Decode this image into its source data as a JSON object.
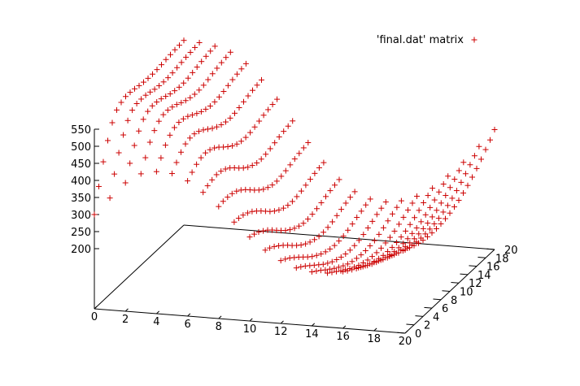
{
  "chart_data": {
    "type": "scatter",
    "title": "",
    "xlabel": "",
    "ylabel": "",
    "zlabel": "",
    "legend": {
      "entry": "'final.dat' matrix",
      "position": "top-right",
      "marker": "+",
      "color": "#cc0000"
    },
    "x_ticks": [
      0,
      2,
      4,
      6,
      8,
      10,
      12,
      14,
      16,
      18,
      20
    ],
    "y_ticks": [
      0,
      2,
      4,
      6,
      8,
      10,
      12,
      14,
      16,
      18,
      20
    ],
    "z_ticks": [
      200,
      250,
      300,
      350,
      400,
      450,
      500,
      550
    ],
    "xlim": [
      0,
      20
    ],
    "ylim": [
      0,
      20
    ],
    "zlim": [
      200,
      550
    ],
    "grid": false,
    "matrix": {
      "rows": 21,
      "cols": 21,
      "description_model": "z(x,y) surface: x index 0..20, y index 0..20",
      "z_values": [
        [
          300,
          370,
          430,
          480,
          520,
          545,
          555,
          560,
          560,
          558,
          555,
          553,
          552,
          552,
          553,
          555,
          558,
          560,
          562,
          563,
          565
        ],
        [
          352,
          410,
          460,
          500,
          530,
          548,
          555,
          556,
          555,
          552,
          548,
          546,
          545,
          545,
          547,
          550,
          553,
          556,
          558,
          560,
          562
        ],
        [
          400,
          445,
          485,
          515,
          537,
          548,
          552,
          551,
          548,
          543,
          538,
          535,
          533,
          533,
          535,
          539,
          543,
          547,
          550,
          553,
          555
        ],
        [
          430,
          465,
          498,
          520,
          535,
          542,
          543,
          540,
          535,
          528,
          522,
          518,
          516,
          516,
          518,
          522,
          527,
          531,
          535,
          538,
          541
        ],
        [
          440,
          468,
          493,
          510,
          520,
          523,
          521,
          516,
          508,
          500,
          493,
          488,
          485,
          485,
          487,
          491,
          496,
          501,
          505,
          508,
          511
        ],
        [
          438,
          458,
          476,
          488,
          493,
          493,
          488,
          480,
          470,
          460,
          452,
          446,
          442,
          441,
          443,
          447,
          452,
          457,
          461,
          464,
          467
        ],
        [
          420,
          433,
          444,
          451,
          453,
          450,
          443,
          433,
          421,
          410,
          400,
          393,
          389,
          388,
          390,
          394,
          399,
          404,
          408,
          411,
          414
        ],
        [
          390,
          397,
          402,
          405,
          403,
          397,
          388,
          376,
          363,
          351,
          341,
          334,
          329,
          328,
          330,
          334,
          339,
          344,
          348,
          351,
          354
        ],
        [
          352,
          355,
          355,
          353,
          348,
          339,
          328,
          315,
          302,
          290,
          280,
          273,
          268,
          267,
          269,
          273,
          278,
          283,
          287,
          291,
          294
        ],
        [
          310,
          309,
          306,
          300,
          292,
          281,
          269,
          256,
          243,
          232,
          223,
          216,
          212,
          211,
          213,
          217,
          222,
          227,
          232,
          236,
          239
        ],
        [
          270,
          266,
          260,
          251,
          241,
          229,
          216,
          203,
          191,
          181,
          173,
          167,
          163,
          163,
          165,
          169,
          174,
          180,
          185,
          189,
          193
        ],
        [
          235,
          229,
          221,
          211,
          200,
          188,
          175,
          163,
          152,
          143,
          136,
          131,
          128,
          128,
          130,
          134,
          140,
          146,
          152,
          157,
          161
        ],
        [
          208,
          200,
          191,
          180,
          169,
          157,
          145,
          134,
          125,
          117,
          111,
          107,
          105,
          106,
          108,
          113,
          119,
          126,
          132,
          138,
          143
        ],
        [
          190,
          181,
          171,
          160,
          149,
          138,
          127,
          118,
          110,
          104,
          99,
          96,
          95,
          96,
          99,
          104,
          111,
          118,
          126,
          132,
          138
        ],
        [
          182,
          172,
          162,
          151,
          141,
          131,
          122,
          114,
          107,
          102,
          99,
          97,
          97,
          99,
          102,
          108,
          115,
          123,
          131,
          138,
          145
        ],
        [
          182,
          172,
          162,
          152,
          143,
          134,
          126,
          119,
          114,
          110,
          108,
          107,
          108,
          111,
          115,
          121,
          129,
          137,
          146,
          154,
          162
        ],
        [
          190,
          180,
          171,
          162,
          154,
          146,
          139,
          134,
          130,
          127,
          126,
          126,
          128,
          132,
          137,
          144,
          152,
          161,
          171,
          180,
          189
        ],
        [
          205,
          196,
          187,
          179,
          172,
          166,
          161,
          157,
          154,
          153,
          153,
          155,
          158,
          162,
          168,
          176,
          185,
          195,
          206,
          217,
          228
        ],
        [
          224,
          216,
          208,
          201,
          195,
          190,
          187,
          184,
          183,
          183,
          185,
          188,
          192,
          198,
          205,
          214,
          224,
          235,
          247,
          260,
          272
        ],
        [
          245,
          238,
          231,
          225,
          220,
          217,
          214,
          213,
          213,
          215,
          218,
          222,
          228,
          235,
          244,
          254,
          266,
          279,
          293,
          307,
          322
        ],
        [
          268,
          262,
          256,
          251,
          247,
          245,
          244,
          244,
          246,
          249,
          253,
          259,
          266,
          275,
          285,
          297,
          310,
          325,
          341,
          357,
          375
        ]
      ]
    }
  }
}
